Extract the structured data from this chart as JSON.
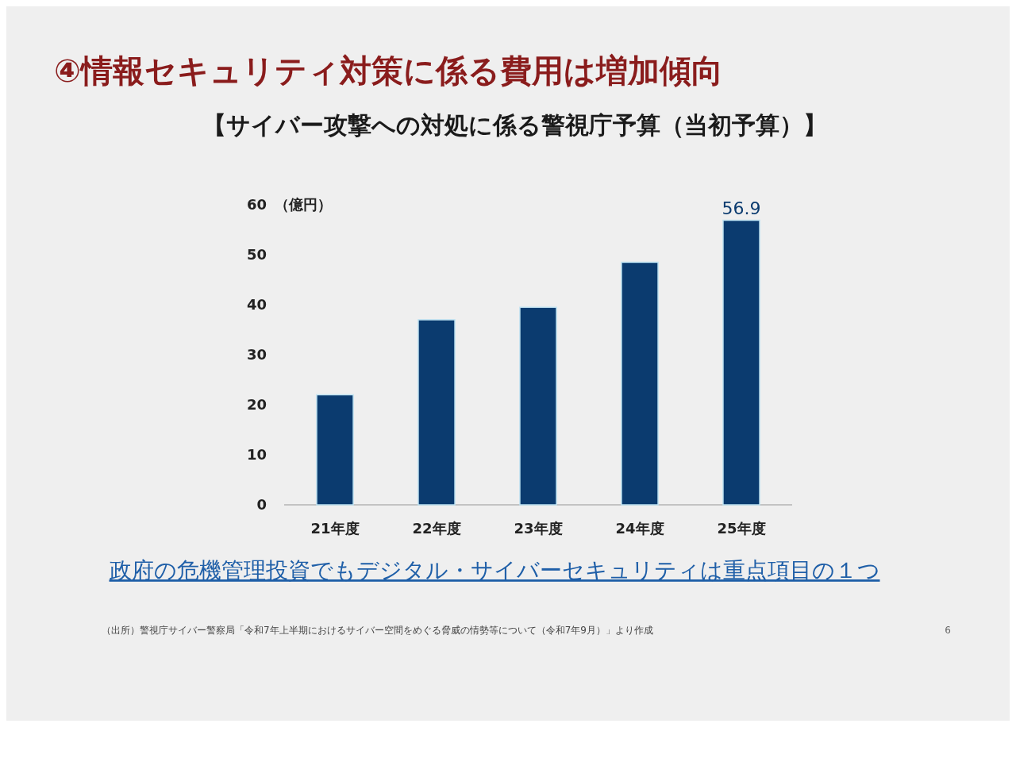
{
  "chart_data": {
    "type": "bar",
    "title": "④情報セキュリティ対策に係る費用は増加傾向",
    "subtitle": "【サイバー攻撃への対処に係る警視庁予算（当初予算）】",
    "ylabel": "（億円）",
    "categories": [
      "21年度",
      "22年度",
      "23年度",
      "24年度",
      "25年度"
    ],
    "values": [
      22,
      37,
      39.5,
      48.5,
      56.9
    ],
    "color": "#0b3b6f",
    "value_labels": [
      null,
      null,
      null,
      null,
      "56.9"
    ],
    "ylim": [
      0,
      60
    ],
    "yticks": [
      0,
      10,
      20,
      30,
      40,
      50,
      60
    ],
    "annotations": [
      "政府の危機管理投資でもデジタル・サイバーセキュリティは重点項目の１つ",
      "（出所）警視庁サイバー警察局「令和7年上半期におけるサイバー空間をめぐる脅威の情勢等について（令和7年9月）」より作成",
      "6"
    ]
  }
}
